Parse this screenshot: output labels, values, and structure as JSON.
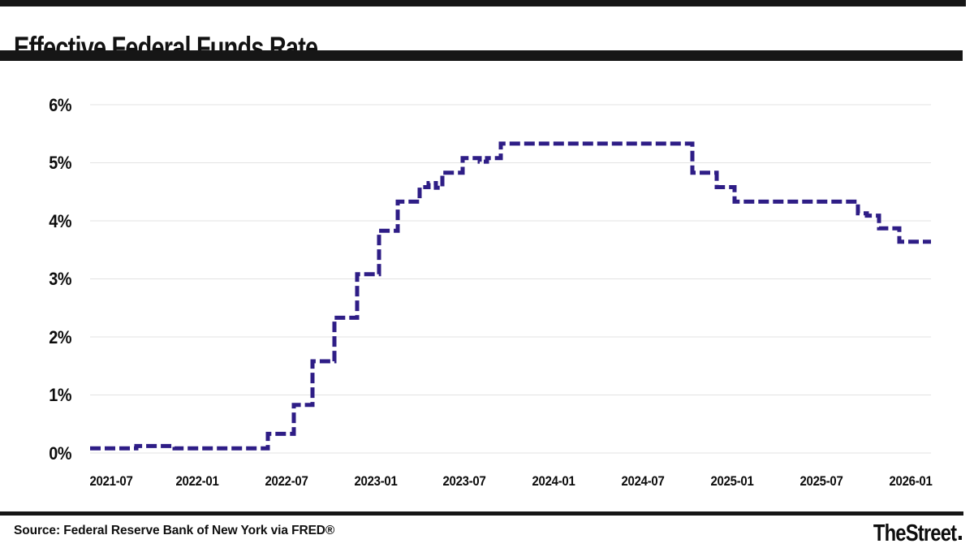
{
  "header": {
    "title": "Effective Federal Funds Rate"
  },
  "footer": {
    "source": "Source: Federal Reserve Bank of New York via FRED®",
    "brand": "TheStreet"
  },
  "chart_data": {
    "type": "line",
    "subtype": "step",
    "title": "Effective Federal Funds Rate",
    "xlabel": "",
    "ylabel": "",
    "ylim": [
      0,
      6
    ],
    "grid": "horizontal",
    "legend": "none",
    "line_color": "#2e1d86",
    "line_style": "dashed",
    "grid_color": "#e3e3e3",
    "y_tick_labels": [
      "0%",
      "1%",
      "2%",
      "3%",
      "4%",
      "5%",
      "6%"
    ],
    "x_tick_labels": [
      "2021-07",
      "2022-01",
      "2022-07",
      "2023-01",
      "2023-07",
      "2024-01",
      "2024-07",
      "2025-01",
      "2025-07",
      "2026-01"
    ],
    "series": [
      {
        "name": "Effective Federal Funds Rate (%)",
        "points": [
          {
            "date": "2021-05-17",
            "rate": 0.08
          },
          {
            "date": "2021-09-27",
            "rate": 0.12
          },
          {
            "date": "2021-11-08",
            "rate": 0.08
          },
          {
            "date": "2022-03-17",
            "rate": 0.33
          },
          {
            "date": "2022-05-05",
            "rate": 0.83
          },
          {
            "date": "2022-06-16",
            "rate": 1.58
          },
          {
            "date": "2022-07-28",
            "rate": 2.33
          },
          {
            "date": "2022-09-22",
            "rate": 3.08
          },
          {
            "date": "2022-11-03",
            "rate": 3.83
          },
          {
            "date": "2022-12-15",
            "rate": 4.33
          },
          {
            "date": "2023-02-02",
            "rate": 4.58
          },
          {
            "date": "2023-03-06",
            "rate": 4.65
          },
          {
            "date": "2023-03-13",
            "rate": 4.57
          },
          {
            "date": "2023-03-23",
            "rate": 4.83
          },
          {
            "date": "2023-05-04",
            "rate": 5.08
          },
          {
            "date": "2023-06-01",
            "rate": 5.02
          },
          {
            "date": "2023-06-12",
            "rate": 5.08
          },
          {
            "date": "2023-07-27",
            "rate": 5.33
          },
          {
            "date": "2024-09-19",
            "rate": 4.83
          },
          {
            "date": "2024-11-08",
            "rate": 4.58
          },
          {
            "date": "2024-12-19",
            "rate": 4.33
          },
          {
            "date": "2025-09-18",
            "rate": 4.13
          },
          {
            "date": "2025-09-30",
            "rate": 4.09
          },
          {
            "date": "2025-10-30",
            "rate": 3.87
          },
          {
            "date": "2025-12-11",
            "rate": 3.64
          },
          {
            "date": "2026-02-06",
            "rate": 3.64
          }
        ]
      }
    ]
  }
}
